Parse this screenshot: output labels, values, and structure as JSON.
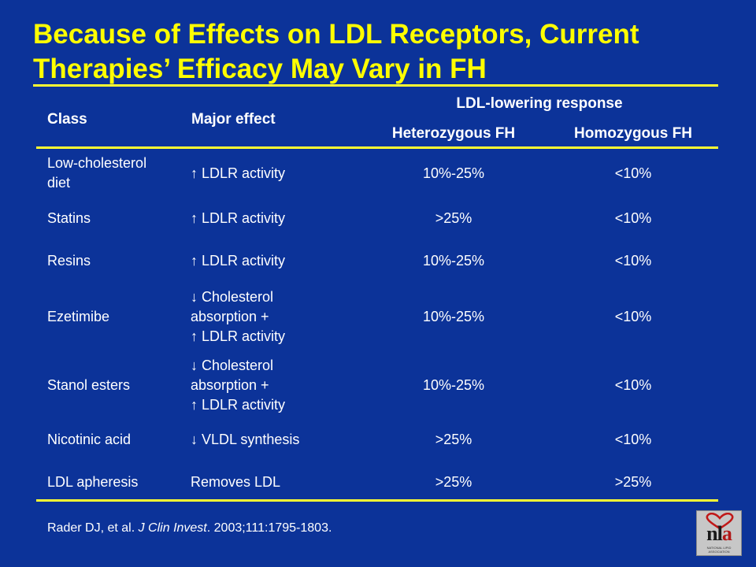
{
  "title": "Because of Effects on LDL Receptors, Current Therapies’ Efficacy May Vary in FH",
  "table": {
    "headers": {
      "class": "Class",
      "major_effect": "Major effect",
      "group": "LDL-lowering response",
      "hetero": "Heterozygous FH",
      "homo": "Homozygous FH"
    },
    "rows": [
      {
        "class_lines": [
          "Low-cholesterol",
          "diet"
        ],
        "effect_lines": [
          "↑ LDLR activity"
        ],
        "hetero": "10%-25%",
        "homo": "<10%"
      },
      {
        "class_lines": [
          "Statins"
        ],
        "effect_lines": [
          "↑ LDLR activity"
        ],
        "hetero": ">25%",
        "homo": "<10%"
      },
      {
        "class_lines": [
          "Resins"
        ],
        "effect_lines": [
          "↑ LDLR activity"
        ],
        "hetero": "10%-25%",
        "homo": "<10%"
      },
      {
        "class_lines": [
          "Ezetimibe"
        ],
        "effect_lines": [
          "↓ Cholesterol",
          "absorption +",
          "↑ LDLR activity"
        ],
        "hetero": "10%-25%",
        "homo": "<10%"
      },
      {
        "class_lines": [
          "Stanol esters"
        ],
        "effect_lines": [
          "↓ Cholesterol",
          "absorption +",
          "↑ LDLR activity"
        ],
        "hetero": "10%-25%",
        "homo": "<10%"
      },
      {
        "class_lines": [
          "Nicotinic acid"
        ],
        "effect_lines": [
          "↓ VLDL synthesis"
        ],
        "hetero": ">25%",
        "homo": "<10%"
      },
      {
        "class_lines": [
          "LDL apheresis"
        ],
        "effect_lines": [
          "Removes LDL"
        ],
        "hetero": ">25%",
        "homo": ">25%"
      }
    ]
  },
  "citation": {
    "authors": "Rader DJ, et al.",
    "journal": "J Clin Invest",
    "details": ". 2003;111:1795-1803."
  },
  "logo": {
    "mark_n": "n",
    "mark_l": "l",
    "mark_a": "a",
    "org_name": "NATIONAL LIPID ASSOCIATION"
  },
  "colors": {
    "background": "#0c3399",
    "title": "#ffff00",
    "rule": "#ffff33",
    "text": "#ffffff"
  }
}
